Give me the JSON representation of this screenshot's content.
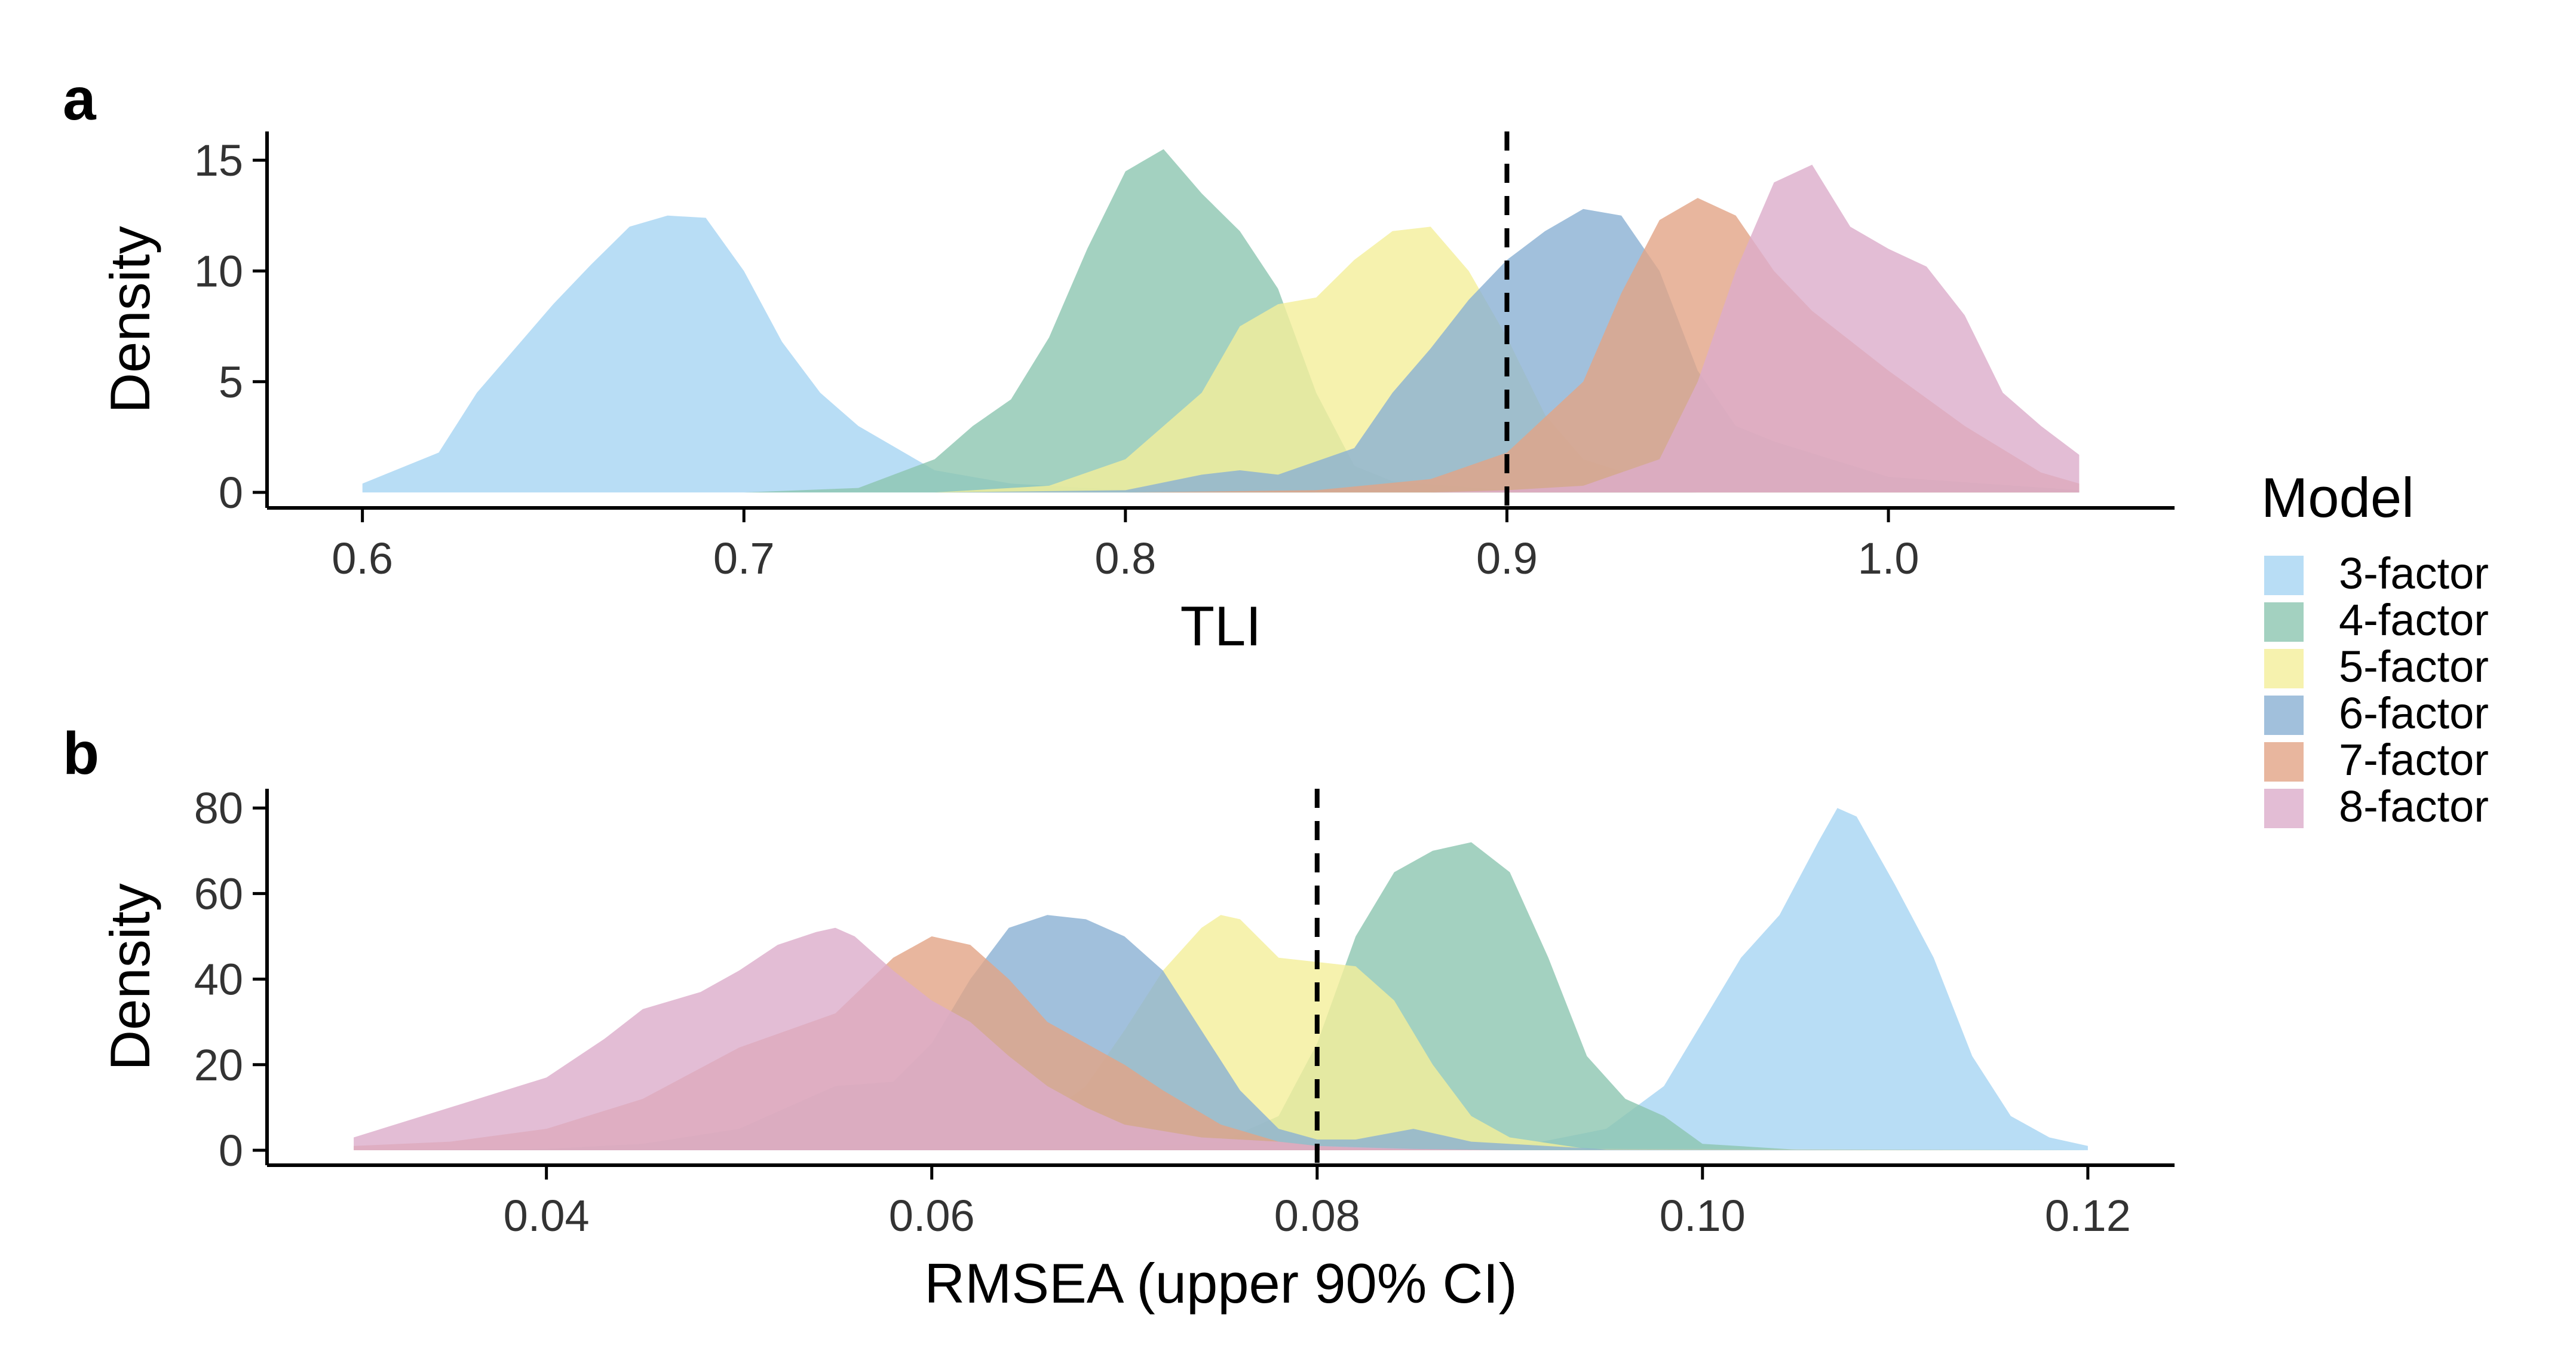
{
  "legend": {
    "title": "Model",
    "items": [
      {
        "label": "3-factor",
        "color": "#A6D4F2"
      },
      {
        "label": "4-factor",
        "color": "#8CC5B0"
      },
      {
        "label": "5-factor",
        "color": "#F4EF9A"
      },
      {
        "label": "6-factor",
        "color": "#8AB0D3"
      },
      {
        "label": "7-factor",
        "color": "#E2A486"
      },
      {
        "label": "8-factor",
        "color": "#DCADCA"
      }
    ]
  },
  "chart_data": [
    {
      "panel": "a",
      "type": "area",
      "xlabel": "TLI",
      "ylabel": "Density",
      "xlim": [
        0.575,
        1.075
      ],
      "ylim": [
        -0.7,
        16.3
      ],
      "xticks": [
        "0.6",
        "0.7",
        "0.8",
        "0.9",
        "1.0"
      ],
      "yticks": [
        "0",
        "5",
        "10",
        "15"
      ],
      "reference_line": 0.9,
      "grid": false,
      "legend_position": "right",
      "series": [
        {
          "name": "3-factor",
          "color": "#A6D4F2",
          "x": [
            0.6,
            0.62,
            0.63,
            0.65,
            0.66,
            0.67,
            0.68,
            0.69,
            0.7,
            0.71,
            0.72,
            0.73,
            0.75,
            0.77,
            0.8,
            0.85,
            1.05
          ],
          "y": [
            0.4,
            1.8,
            4.5,
            8.5,
            10.3,
            12.0,
            12.5,
            12.4,
            10.0,
            6.8,
            4.5,
            3.0,
            1.0,
            0.4,
            0.1,
            0,
            0
          ]
        },
        {
          "name": "4-factor",
          "color": "#8CC5B0",
          "x": [
            0.6,
            0.7,
            0.73,
            0.75,
            0.76,
            0.77,
            0.78,
            0.79,
            0.8,
            0.81,
            0.82,
            0.83,
            0.84,
            0.85,
            0.86,
            0.87,
            0.9,
            0.95,
            1.05
          ],
          "y": [
            0,
            0,
            0.2,
            1.5,
            3.0,
            4.2,
            7.0,
            11.0,
            14.5,
            15.5,
            13.5,
            11.8,
            9.2,
            4.5,
            1.2,
            0.5,
            0.1,
            0,
            0
          ]
        },
        {
          "name": "5-factor",
          "color": "#F4EF9A",
          "x": [
            0.6,
            0.75,
            0.78,
            0.8,
            0.82,
            0.83,
            0.84,
            0.85,
            0.86,
            0.87,
            0.88,
            0.89,
            0.9,
            0.91,
            0.92,
            0.94,
            0.97,
            1.05
          ],
          "y": [
            0,
            0,
            0.3,
            1.5,
            4.5,
            7.5,
            8.5,
            8.8,
            10.5,
            11.8,
            12.0,
            10.0,
            7.0,
            3.5,
            1.5,
            0.4,
            0.1,
            0
          ]
        },
        {
          "name": "6-factor",
          "color": "#8AB0D3",
          "x": [
            0.6,
            0.75,
            0.8,
            0.82,
            0.83,
            0.84,
            0.86,
            0.87,
            0.88,
            0.89,
            0.9,
            0.91,
            0.92,
            0.93,
            0.94,
            0.95,
            0.96,
            0.97,
            1.0,
            1.05
          ],
          "y": [
            0,
            0,
            0.1,
            0.8,
            1.0,
            0.8,
            2.0,
            4.5,
            6.5,
            8.7,
            10.5,
            11.8,
            12.8,
            12.5,
            10.0,
            5.5,
            3.0,
            2.3,
            0.7,
            0.1
          ]
        },
        {
          "name": "7-factor",
          "color": "#E2A486",
          "x": [
            0.6,
            0.8,
            0.85,
            0.88,
            0.9,
            0.92,
            0.93,
            0.94,
            0.95,
            0.96,
            0.97,
            0.98,
            1.0,
            1.02,
            1.04,
            1.05
          ],
          "y": [
            0,
            0,
            0.1,
            0.6,
            1.8,
            5.0,
            9.0,
            12.3,
            13.3,
            12.5,
            10.0,
            8.2,
            5.5,
            3.0,
            0.9,
            0.4
          ]
        },
        {
          "name": "8-factor",
          "color": "#DCADCA",
          "x": [
            0.6,
            0.88,
            0.9,
            0.92,
            0.94,
            0.95,
            0.96,
            0.97,
            0.98,
            0.99,
            1.0,
            1.01,
            1.02,
            1.03,
            1.04,
            1.05
          ],
          "y": [
            0,
            0,
            0.1,
            0.3,
            1.5,
            5.0,
            10.0,
            14.0,
            14.8,
            12.0,
            11.0,
            10.2,
            8.0,
            4.5,
            3.0,
            1.7
          ]
        }
      ]
    },
    {
      "panel": "b",
      "type": "area",
      "xlabel": "RMSEA (upper 90% CI)",
      "ylabel": "Density",
      "xlim": [
        0.0255,
        0.1245
      ],
      "ylim": [
        -3.5,
        84.5
      ],
      "xticks": [
        "0.04",
        "0.06",
        "0.08",
        "0.10",
        "0.12"
      ],
      "yticks": [
        "0",
        "20",
        "40",
        "60",
        "80"
      ],
      "reference_line": 0.08,
      "grid": false,
      "legend_position": "right",
      "series": [
        {
          "name": "3-factor",
          "color": "#A6D4F2",
          "x": [
            0.03,
            0.085,
            0.09,
            0.095,
            0.098,
            0.1,
            0.102,
            0.104,
            0.106,
            0.107,
            0.108,
            0.11,
            0.112,
            0.114,
            0.116,
            0.118,
            0.12
          ],
          "y": [
            0,
            0,
            0.5,
            5.0,
            15.0,
            30.0,
            45.0,
            55.0,
            72.0,
            80.0,
            78.0,
            62.0,
            45.0,
            22.0,
            8.0,
            3.0,
            1.0
          ]
        },
        {
          "name": "4-factor",
          "color": "#8CC5B0",
          "x": [
            0.03,
            0.065,
            0.07,
            0.075,
            0.078,
            0.08,
            0.082,
            0.084,
            0.086,
            0.088,
            0.09,
            0.092,
            0.094,
            0.096,
            0.098,
            0.1,
            0.105,
            0.12
          ],
          "y": [
            0,
            0,
            0.5,
            2.0,
            8.0,
            25.0,
            50.0,
            65.0,
            70.0,
            72.0,
            65.0,
            45.0,
            22.0,
            12.0,
            8.0,
            1.5,
            0.1,
            0
          ]
        },
        {
          "name": "5-factor",
          "color": "#F4EF9A",
          "x": [
            0.03,
            0.06,
            0.065,
            0.068,
            0.07,
            0.072,
            0.074,
            0.075,
            0.076,
            0.078,
            0.08,
            0.082,
            0.084,
            0.086,
            0.088,
            0.09,
            0.094,
            0.12
          ],
          "y": [
            0,
            0,
            5.0,
            15.0,
            28.0,
            42.0,
            52.0,
            55.0,
            54.0,
            45.0,
            44.0,
            43.0,
            35.0,
            20.0,
            8.0,
            3.0,
            0.3,
            0
          ]
        },
        {
          "name": "6-factor",
          "color": "#8AB0D3",
          "x": [
            0.03,
            0.04,
            0.045,
            0.05,
            0.055,
            0.058,
            0.06,
            0.062,
            0.064,
            0.066,
            0.068,
            0.07,
            0.072,
            0.074,
            0.076,
            0.078,
            0.08,
            0.082,
            0.085,
            0.088,
            0.095,
            0.12
          ],
          "y": [
            0,
            0.3,
            1.5,
            5.0,
            15.0,
            16.0,
            25.0,
            40.0,
            52.0,
            55.0,
            54.0,
            50.0,
            42.0,
            28.0,
            14.0,
            5.0,
            2.5,
            2.5,
            5.0,
            2.0,
            0.2,
            0
          ]
        },
        {
          "name": "7-factor",
          "color": "#E2A486",
          "x": [
            0.03,
            0.035,
            0.04,
            0.045,
            0.05,
            0.055,
            0.058,
            0.06,
            0.062,
            0.064,
            0.066,
            0.068,
            0.07,
            0.072,
            0.075,
            0.078,
            0.08,
            0.082,
            0.085,
            0.09,
            0.12
          ],
          "y": [
            1.0,
            2.0,
            5.0,
            12.0,
            24.0,
            32.0,
            45.0,
            50.0,
            48.0,
            40.0,
            30.0,
            25.0,
            20.0,
            14.0,
            6.0,
            2.0,
            1.0,
            0.5,
            0.2,
            0,
            0
          ]
        },
        {
          "name": "8-factor",
          "color": "#DCADCA",
          "x": [
            0.03,
            0.035,
            0.04,
            0.043,
            0.045,
            0.048,
            0.05,
            0.052,
            0.054,
            0.055,
            0.056,
            0.058,
            0.06,
            0.062,
            0.064,
            0.066,
            0.068,
            0.07,
            0.074,
            0.078,
            0.08,
            0.085,
            0.09,
            0.12
          ],
          "y": [
            3.0,
            10.0,
            17.0,
            26.0,
            33.0,
            37.0,
            42.0,
            48.0,
            51.0,
            52.0,
            50.0,
            42.0,
            35.0,
            30.0,
            22.0,
            15.0,
            10.0,
            6.0,
            3.0,
            2.0,
            1.0,
            0.3,
            0,
            0
          ]
        }
      ]
    }
  ]
}
